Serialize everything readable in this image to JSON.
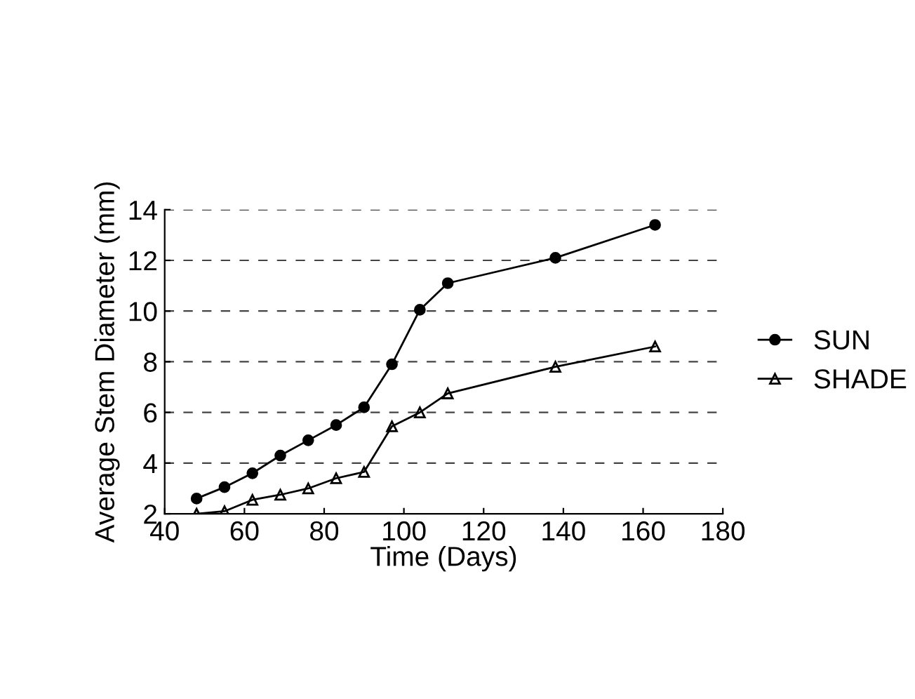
{
  "chart_data": {
    "type": "line",
    "xlabel": "Time (Days)",
    "ylabel": "Average Stem Diameter (mm)",
    "x": [
      48,
      55,
      62,
      69,
      76,
      83,
      90,
      97,
      104,
      111,
      138,
      163
    ],
    "series": [
      {
        "name": "SUN",
        "color": "#000000",
        "marker": "circle",
        "values": [
          2.6,
          3.05,
          3.6,
          4.3,
          4.9,
          5.5,
          6.2,
          7.9,
          10.05,
          11.1,
          12.1,
          13.4
        ]
      },
      {
        "name": "SHADE",
        "color": "#000000",
        "marker": "triangle",
        "values": [
          2.0,
          2.1,
          2.55,
          2.75,
          3.0,
          3.4,
          3.65,
          5.45,
          6.0,
          6.75,
          7.8,
          8.6
        ]
      }
    ],
    "xlim": [
      40,
      180
    ],
    "xticks": [
      40,
      60,
      80,
      100,
      120,
      140,
      160,
      180
    ],
    "ylim": [
      2,
      14
    ],
    "yticks": [
      2,
      4,
      6,
      8,
      10,
      12,
      14
    ],
    "grid": "y",
    "legend": "right"
  }
}
